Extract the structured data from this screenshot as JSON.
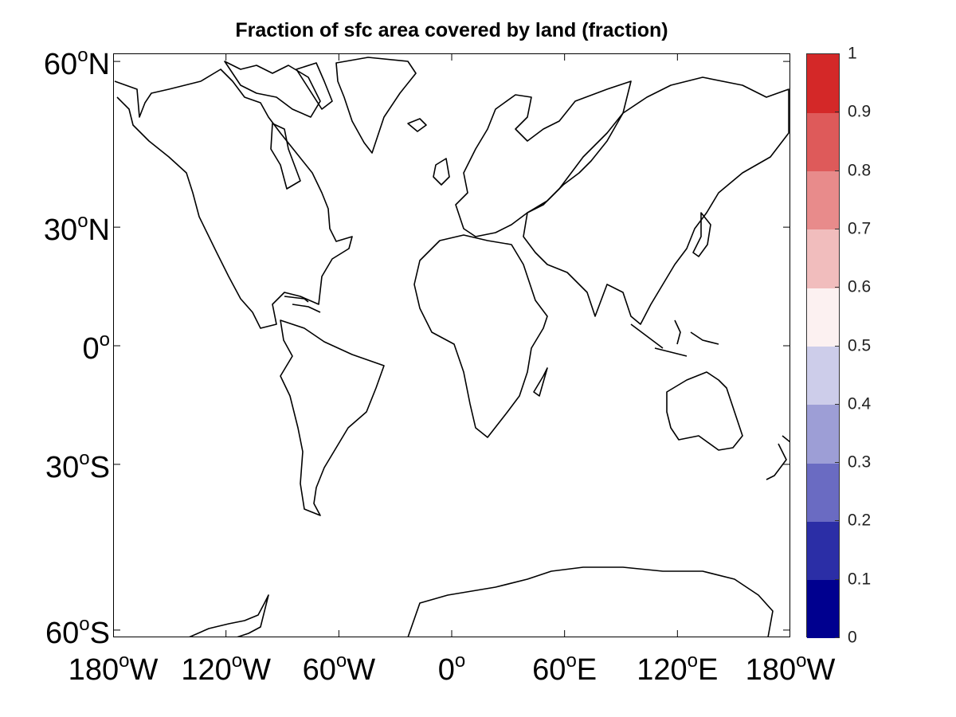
{
  "title": "Fraction of sfc area covered by land (fraction)",
  "map": {
    "projection": "mercator",
    "coastline_color": "#000000",
    "background": "#ffffff",
    "field_value": "uniform (no shading visible)"
  },
  "y_axis": {
    "ticks": [
      {
        "lat": 60,
        "text": "60",
        "suffix": "N"
      },
      {
        "lat": 30,
        "text": "30",
        "suffix": "N"
      },
      {
        "lat": 0,
        "text": "0",
        "suffix": ""
      },
      {
        "lat": -30,
        "text": "30",
        "suffix": "S"
      },
      {
        "lat": -60,
        "text": "60",
        "suffix": "S"
      }
    ]
  },
  "x_axis": {
    "ticks": [
      {
        "lon": -180,
        "text": "180",
        "suffix": "W"
      },
      {
        "lon": -120,
        "text": "120",
        "suffix": "W"
      },
      {
        "lon": -60,
        "text": "60",
        "suffix": "W"
      },
      {
        "lon": 0,
        "text": "0",
        "suffix": ""
      },
      {
        "lon": 60,
        "text": "60",
        "suffix": "E"
      },
      {
        "lon": 120,
        "text": "120",
        "suffix": "E"
      },
      {
        "lon": 180,
        "text": "180",
        "suffix": "W"
      }
    ]
  },
  "colorbar": {
    "ticks": [
      "0",
      "0.1",
      "0.2",
      "0.3",
      "0.4",
      "0.5",
      "0.6",
      "0.7",
      "0.8",
      "0.9",
      "1"
    ],
    "colors": [
      "#00008f",
      "#2b2ea6",
      "#6a6bc2",
      "#9d9ed6",
      "#cdcdea",
      "#fcf1f1",
      "#f1bdbd",
      "#e88b8b",
      "#de5a5a",
      "#d42828"
    ]
  }
}
